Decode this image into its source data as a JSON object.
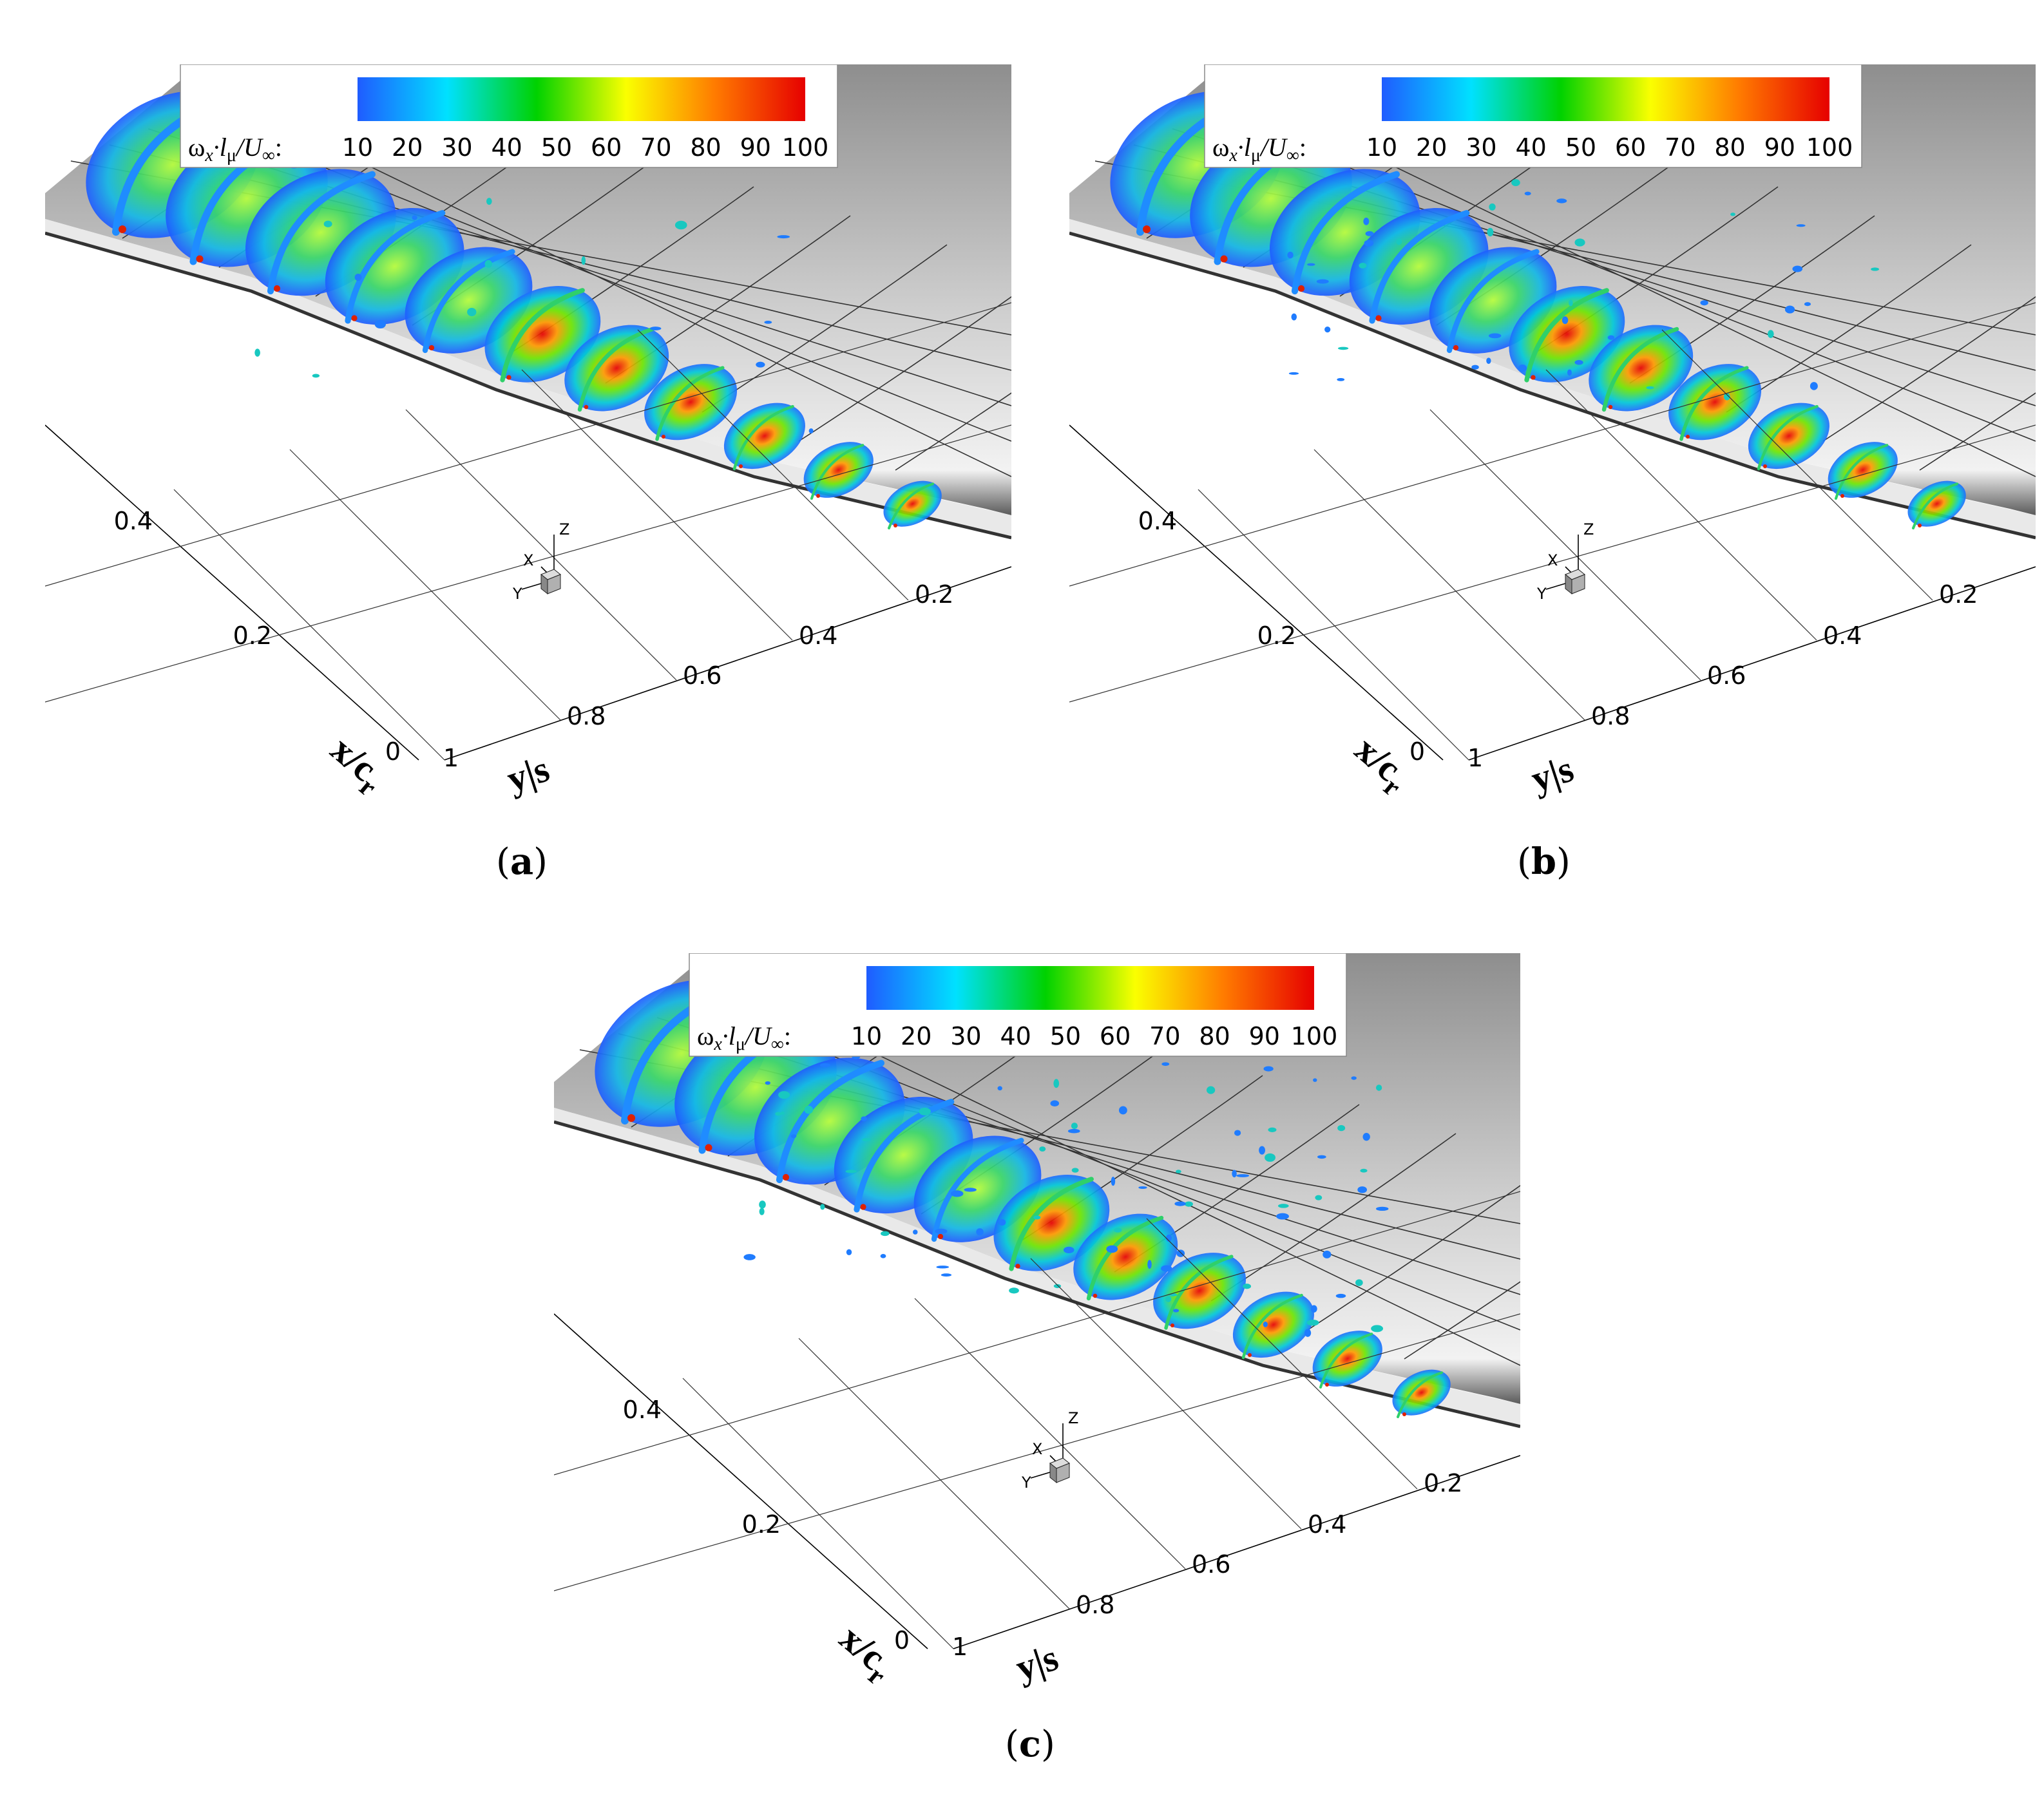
{
  "colorbar": {
    "label_html": "ω<sub>x</sub>·l<sub>μ</sub>/U<sub>∞</sub>:",
    "label_parts": [
      "ω",
      "x",
      "·l",
      "μ",
      "/U",
      "∞",
      ":"
    ],
    "ticks": [
      "10",
      "20",
      "30",
      "40",
      "50",
      "60",
      "70",
      "80",
      "90",
      "100"
    ],
    "colors": [
      "#1f5cff",
      "#00e1ff",
      "#00d200",
      "#faff00",
      "#ff7a00",
      "#e60000"
    ]
  },
  "axes": {
    "x_label_main": "x/c",
    "x_label_sub": "r",
    "y_label": "y|s",
    "x_ticks": [
      "0",
      "0.2",
      "0.4"
    ],
    "y_ticks": [
      "1",
      "0.8",
      "0.6",
      "0.4",
      "0.2"
    ]
  },
  "triad": {
    "x": "X",
    "y": "Y",
    "z": "Z"
  },
  "panels": [
    {
      "id": "a",
      "caption_open": "(",
      "caption_letter": "a",
      "caption_close": ")"
    },
    {
      "id": "b",
      "caption_open": "(",
      "caption_letter": "b",
      "caption_close": ")"
    },
    {
      "id": "c",
      "caption_open": "(",
      "caption_letter": "c",
      "caption_close": ")"
    }
  ]
}
